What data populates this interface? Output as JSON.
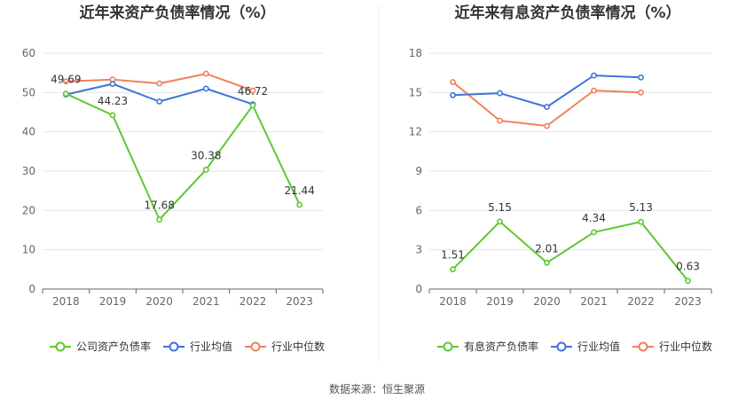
{
  "footer": {
    "source": "数据来源：恒生聚源"
  },
  "chart_data": [
    {
      "type": "line",
      "title": "近年来资产负债率情况（%）",
      "categories": [
        "2018",
        "2019",
        "2020",
        "2021",
        "2022",
        "2023"
      ],
      "ylim": [
        0,
        60
      ],
      "yticks": [
        0,
        10,
        20,
        30,
        40,
        50,
        60
      ],
      "grid": true,
      "legend_position": "bottom",
      "series": [
        {
          "name": "公司资产负债率",
          "color": "#5ec832",
          "values": [
            49.69,
            44.23,
            17.68,
            30.38,
            46.72,
            21.44
          ],
          "labels": [
            "49.69",
            "44.23",
            "17.68",
            "30.38",
            "46.72",
            "21.44"
          ]
        },
        {
          "name": "行业均值",
          "color": "#3e74d8",
          "values": [
            49.5,
            52.2,
            47.7,
            51.0,
            47.0,
            null
          ]
        },
        {
          "name": "行业中位数",
          "color": "#f08159",
          "values": [
            52.8,
            53.3,
            52.3,
            54.8,
            50.5,
            null
          ]
        }
      ]
    },
    {
      "type": "line",
      "title": "近年来有息资产负债率情况（%）",
      "categories": [
        "2018",
        "2019",
        "2020",
        "2021",
        "2022",
        "2023"
      ],
      "ylim": [
        0,
        18
      ],
      "yticks": [
        0,
        3,
        6,
        9,
        12,
        15,
        18
      ],
      "grid": true,
      "legend_position": "bottom",
      "series": [
        {
          "name": "有息资产负债率",
          "color": "#5ec832",
          "values": [
            1.51,
            5.15,
            2.01,
            4.34,
            5.13,
            0.63
          ],
          "labels": [
            "1.51",
            "5.15",
            "2.01",
            "4.34",
            "5.13",
            "0.63"
          ]
        },
        {
          "name": "行业均值",
          "color": "#3e74d8",
          "values": [
            14.8,
            14.95,
            13.9,
            16.3,
            16.15,
            null
          ]
        },
        {
          "name": "行业中位数",
          "color": "#f08159",
          "values": [
            15.8,
            12.85,
            12.45,
            15.15,
            15.0,
            null
          ]
        }
      ]
    }
  ]
}
